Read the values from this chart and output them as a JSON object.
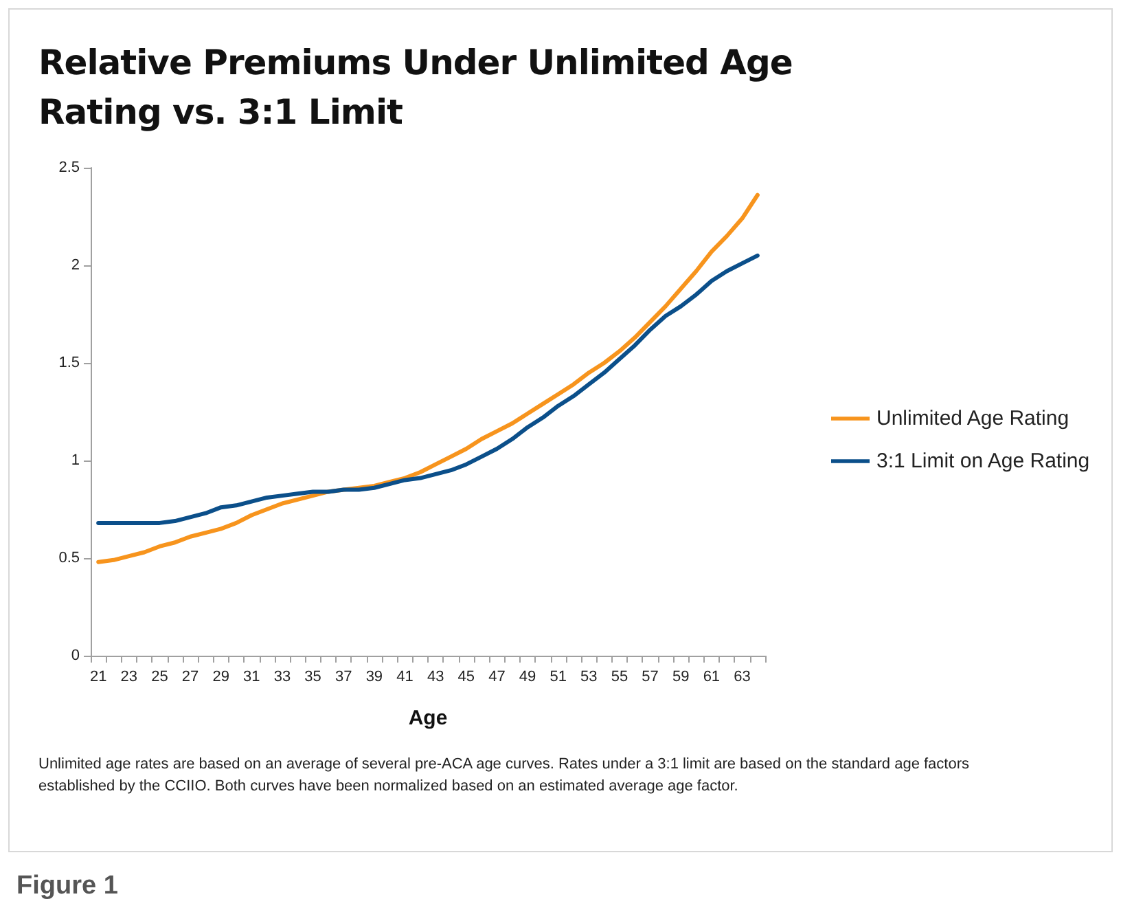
{
  "chart_data": {
    "type": "line",
    "title": "Relative Premiums Under Unlimited Age Rating vs. 3:1 Limit",
    "xlabel": "Age",
    "categories": [
      "21",
      null,
      "23",
      null,
      "25",
      null,
      "27",
      null,
      "29",
      null,
      "31",
      null,
      "33",
      null,
      "35",
      null,
      "37",
      null,
      "39",
      null,
      "41",
      null,
      "43",
      null,
      "45",
      null,
      "47",
      null,
      "49",
      null,
      "51",
      null,
      "53",
      null,
      "55",
      null,
      "57",
      null,
      "59",
      null,
      "61",
      null,
      "63",
      null
    ],
    "series": [
      {
        "name": "Unlimited Age Rating",
        "color": "#f7941d",
        "values": [
          0.48,
          0.49,
          0.51,
          0.53,
          0.56,
          0.58,
          0.61,
          0.63,
          0.65,
          0.68,
          0.72,
          0.75,
          0.78,
          0.8,
          0.82,
          0.84,
          0.85,
          0.86,
          0.87,
          0.89,
          0.91,
          0.94,
          0.98,
          1.02,
          1.06,
          1.11,
          1.15,
          1.19,
          1.24,
          1.29,
          1.34,
          1.39,
          1.45,
          1.5,
          1.56,
          1.63,
          1.71,
          1.79,
          1.88,
          1.97,
          2.07,
          2.15,
          2.24,
          2.36
        ]
      },
      {
        "name": "3:1 Limit on Age Rating",
        "color": "#0b4f8a",
        "values": [
          0.68,
          0.68,
          0.68,
          0.68,
          0.68,
          0.69,
          0.71,
          0.73,
          0.76,
          0.77,
          0.79,
          0.81,
          0.82,
          0.83,
          0.84,
          0.84,
          0.85,
          0.85,
          0.86,
          0.88,
          0.9,
          0.91,
          0.93,
          0.95,
          0.98,
          1.02,
          1.06,
          1.11,
          1.17,
          1.22,
          1.28,
          1.33,
          1.39,
          1.45,
          1.52,
          1.59,
          1.67,
          1.74,
          1.79,
          1.85,
          1.92,
          1.97,
          2.01,
          2.05
        ]
      }
    ],
    "ylim": [
      0,
      2.5
    ],
    "yticks": [
      0,
      0.5,
      1,
      1.5,
      2,
      2.5
    ],
    "grid": false,
    "legend": "right",
    "marker": "none",
    "line_style": "solid",
    "annotations": [
      "Unlimited age rates are based on an average of several pre-ACA age curves. Rates under a 3:1 limit are based on the standard age factors established by the CCIIO. Both curves have been normalized based on an estimated average age factor.",
      "Figure 1"
    ]
  }
}
